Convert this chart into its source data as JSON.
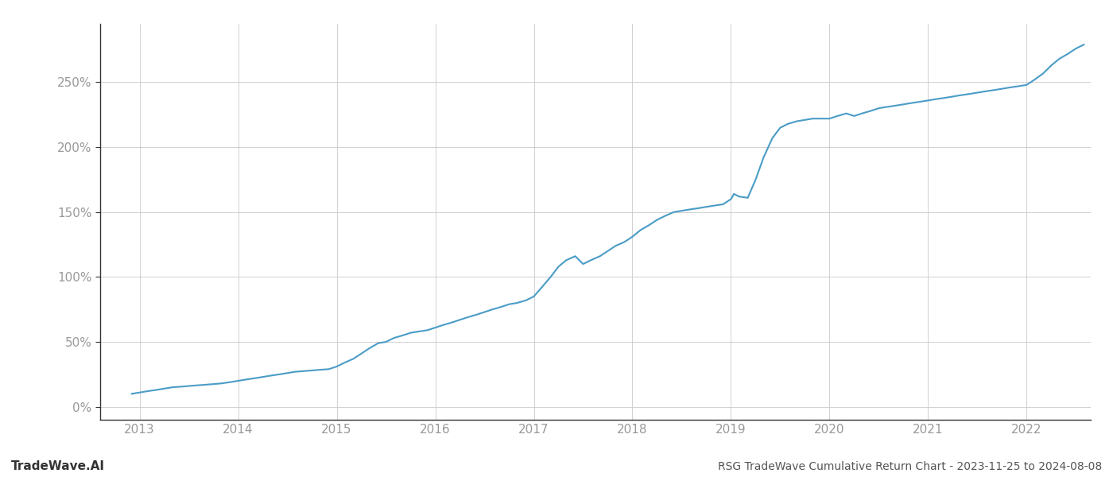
{
  "title_right": "RSG TradeWave Cumulative Return Chart - 2023-11-25 to 2024-08-08",
  "title_left": "TradeWave.AI",
  "line_color": "#4a9cc7",
  "background_color": "#ffffff",
  "grid_color": "#cccccc",
  "x_years": [
    2013,
    2014,
    2015,
    2016,
    2017,
    2018,
    2019,
    2020,
    2021,
    2022
  ],
  "y_ticks": [
    0,
    50,
    100,
    150,
    200,
    250
  ],
  "ylim": [
    -10,
    295
  ],
  "xlim": [
    2012.6,
    2022.65
  ],
  "data_x": [
    2012.92,
    2013.0,
    2013.08,
    2013.17,
    2013.25,
    2013.33,
    2013.42,
    2013.5,
    2013.58,
    2013.67,
    2013.75,
    2013.83,
    2013.92,
    2014.0,
    2014.08,
    2014.17,
    2014.25,
    2014.33,
    2014.42,
    2014.5,
    2014.58,
    2014.67,
    2014.75,
    2014.83,
    2014.92,
    2015.0,
    2015.08,
    2015.17,
    2015.25,
    2015.33,
    2015.42,
    2015.5,
    2015.58,
    2015.67,
    2015.75,
    2015.83,
    2015.92,
    2016.0,
    2016.08,
    2016.17,
    2016.25,
    2016.33,
    2016.42,
    2016.5,
    2016.58,
    2016.67,
    2016.75,
    2016.83,
    2016.92,
    2017.0,
    2017.08,
    2017.17,
    2017.25,
    2017.33,
    2017.42,
    2017.5,
    2017.58,
    2017.67,
    2017.75,
    2017.83,
    2017.92,
    2018.0,
    2018.08,
    2018.17,
    2018.25,
    2018.33,
    2018.42,
    2018.5,
    2018.58,
    2018.67,
    2018.75,
    2018.83,
    2018.92,
    2019.0,
    2019.03,
    2019.08,
    2019.17,
    2019.25,
    2019.33,
    2019.42,
    2019.5,
    2019.58,
    2019.67,
    2019.75,
    2019.83,
    2019.92,
    2020.0,
    2020.08,
    2020.17,
    2020.25,
    2020.33,
    2020.42,
    2020.5,
    2020.58,
    2020.67,
    2020.75,
    2020.83,
    2020.92,
    2021.0,
    2021.08,
    2021.17,
    2021.25,
    2021.33,
    2021.42,
    2021.5,
    2021.58,
    2021.67,
    2021.75,
    2021.83,
    2021.92,
    2022.0,
    2022.08,
    2022.17,
    2022.25,
    2022.33,
    2022.42,
    2022.5,
    2022.58
  ],
  "data_y": [
    10,
    11,
    12,
    13,
    14,
    15,
    15.5,
    16,
    16.5,
    17,
    17.5,
    18,
    19,
    20,
    21,
    22,
    23,
    24,
    25,
    26,
    27,
    27.5,
    28,
    28.5,
    29,
    31,
    34,
    37,
    41,
    45,
    49,
    50,
    53,
    55,
    57,
    58,
    59,
    61,
    63,
    65,
    67,
    69,
    71,
    73,
    75,
    77,
    79,
    80,
    82,
    85,
    92,
    100,
    108,
    113,
    116,
    110,
    113,
    116,
    120,
    124,
    127,
    131,
    136,
    140,
    144,
    147,
    150,
    151,
    152,
    153,
    154,
    155,
    156,
    160,
    164,
    162,
    161,
    175,
    192,
    207,
    215,
    218,
    220,
    221,
    222,
    222,
    222,
    224,
    226,
    224,
    226,
    228,
    230,
    231,
    232,
    233,
    234,
    235,
    236,
    237,
    238,
    239,
    240,
    241,
    242,
    243,
    244,
    245,
    246,
    247,
    248,
    252,
    257,
    263,
    268,
    272,
    276,
    279
  ]
}
